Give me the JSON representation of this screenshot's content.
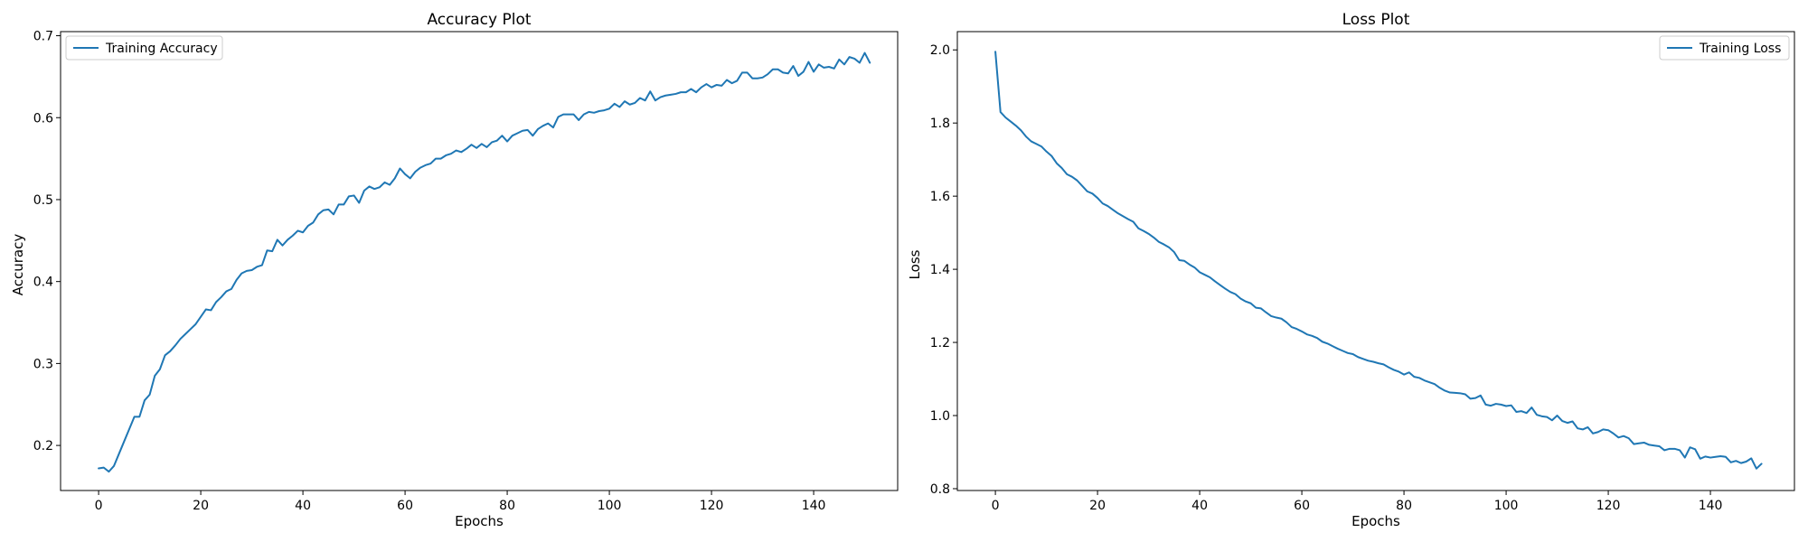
{
  "line_color": "#1f77b4",
  "chart_data": [
    {
      "type": "line",
      "title": "Accuracy Plot",
      "xlabel": "Epochs",
      "ylabel": "Accuracy",
      "xlim": [
        -7.45,
        156.45
      ],
      "ylim": [
        0.145,
        0.705
      ],
      "xticks": [
        0,
        20,
        40,
        60,
        80,
        100,
        120,
        140
      ],
      "yticks": [
        0.2,
        0.3,
        0.4,
        0.5,
        0.6,
        0.7
      ],
      "ytick_decimals": 1,
      "grid": false,
      "legend": "top-left",
      "series": [
        {
          "name": "Training Accuracy",
          "values": [
            0.172,
            0.173,
            0.168,
            0.175,
            0.19,
            0.205,
            0.22,
            0.235,
            0.235,
            0.255,
            0.262,
            0.285,
            0.293,
            0.31,
            0.315,
            0.322,
            0.33,
            0.336,
            0.342,
            0.348,
            0.357,
            0.366,
            0.365,
            0.375,
            0.381,
            0.388,
            0.391,
            0.402,
            0.41,
            0.413,
            0.414,
            0.418,
            0.42,
            0.438,
            0.437,
            0.451,
            0.444,
            0.451,
            0.456,
            0.462,
            0.46,
            0.468,
            0.472,
            0.482,
            0.487,
            0.488,
            0.482,
            0.494,
            0.494,
            0.504,
            0.505,
            0.496,
            0.511,
            0.516,
            0.513,
            0.515,
            0.521,
            0.518,
            0.526,
            0.538,
            0.531,
            0.526,
            0.534,
            0.539,
            0.542,
            0.544,
            0.55,
            0.55,
            0.554,
            0.556,
            0.56,
            0.558,
            0.562,
            0.567,
            0.563,
            0.568,
            0.564,
            0.57,
            0.572,
            0.578,
            0.571,
            0.578,
            0.581,
            0.584,
            0.585,
            0.578,
            0.586,
            0.59,
            0.593,
            0.588,
            0.601,
            0.604,
            0.604,
            0.604,
            0.597,
            0.604,
            0.607,
            0.606,
            0.608,
            0.609,
            0.611,
            0.617,
            0.613,
            0.62,
            0.616,
            0.618,
            0.624,
            0.621,
            0.632,
            0.621,
            0.625,
            0.627,
            0.628,
            0.629,
            0.631,
            0.631,
            0.635,
            0.631,
            0.637,
            0.641,
            0.637,
            0.64,
            0.639,
            0.646,
            0.642,
            0.645,
            0.655,
            0.655,
            0.648,
            0.648,
            0.649,
            0.653,
            0.659,
            0.659,
            0.655,
            0.654,
            0.663,
            0.651,
            0.656,
            0.668,
            0.656,
            0.665,
            0.661,
            0.662,
            0.66,
            0.671,
            0.665,
            0.674,
            0.672,
            0.667,
            0.679,
            0.667
          ]
        }
      ]
    },
    {
      "type": "line",
      "title": "Loss Plot",
      "xlabel": "Epochs",
      "ylabel": "Loss",
      "xlim": [
        -7.45,
        156.45
      ],
      "ylim": [
        0.795,
        2.05
      ],
      "xticks": [
        0,
        20,
        40,
        60,
        80,
        100,
        120,
        140
      ],
      "yticks": [
        0.8,
        1.0,
        1.2,
        1.4,
        1.6,
        1.8,
        2.0
      ],
      "ytick_decimals": 1,
      "grid": false,
      "legend": "top-right",
      "series": [
        {
          "name": "Training Loss",
          "values": [
            1.995,
            1.83,
            1.815,
            1.804,
            1.793,
            1.78,
            1.763,
            1.75,
            1.743,
            1.736,
            1.722,
            1.71,
            1.69,
            1.677,
            1.66,
            1.653,
            1.643,
            1.628,
            1.613,
            1.607,
            1.595,
            1.58,
            1.573,
            1.563,
            1.553,
            1.545,
            1.537,
            1.53,
            1.512,
            1.505,
            1.497,
            1.487,
            1.475,
            1.468,
            1.46,
            1.447,
            1.425,
            1.423,
            1.413,
            1.405,
            1.392,
            1.385,
            1.378,
            1.367,
            1.357,
            1.347,
            1.338,
            1.332,
            1.32,
            1.312,
            1.307,
            1.295,
            1.293,
            1.282,
            1.272,
            1.268,
            1.265,
            1.255,
            1.242,
            1.237,
            1.23,
            1.222,
            1.218,
            1.212,
            1.202,
            1.197,
            1.19,
            1.183,
            1.177,
            1.171,
            1.168,
            1.16,
            1.155,
            1.15,
            1.147,
            1.143,
            1.14,
            1.132,
            1.125,
            1.12,
            1.112,
            1.118,
            1.106,
            1.103,
            1.096,
            1.091,
            1.086,
            1.076,
            1.068,
            1.063,
            1.062,
            1.061,
            1.058,
            1.046,
            1.048,
            1.055,
            1.03,
            1.027,
            1.032,
            1.03,
            1.026,
            1.028,
            1.01,
            1.012,
            1.007,
            1.022,
            1.002,
            0.998,
            0.996,
            0.987,
            1.0,
            0.985,
            0.98,
            0.984,
            0.965,
            0.962,
            0.968,
            0.951,
            0.955,
            0.962,
            0.96,
            0.951,
            0.94,
            0.944,
            0.938,
            0.922,
            0.924,
            0.926,
            0.92,
            0.918,
            0.916,
            0.905,
            0.909,
            0.909,
            0.905,
            0.885,
            0.913,
            0.908,
            0.882,
            0.888,
            0.885,
            0.887,
            0.889,
            0.887,
            0.872,
            0.876,
            0.87,
            0.874,
            0.883,
            0.855,
            0.868
          ]
        }
      ]
    }
  ]
}
